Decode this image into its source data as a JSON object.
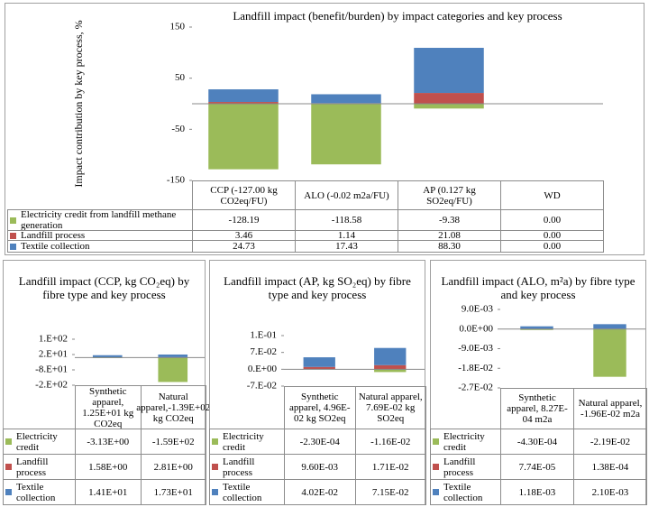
{
  "chart_data": [
    {
      "type": "bar",
      "stacked": true,
      "title": "Landfill impact (benefit/burden) by impact categories and key process",
      "ylabel": "Impact contribution by key process, %",
      "categories": [
        "CCP (-127.00 kg CO2eq/FU)",
        "ALO (-0.02 m2a/FU)",
        "AP (0.127 kg SO2eq/FU)",
        "WD"
      ],
      "ylim": [
        -150,
        150
      ],
      "yticks": [
        -150,
        -50,
        50,
        150
      ],
      "series": [
        {
          "name": "Electricity credit from landfill methane generation",
          "color": "#9bbb59",
          "values": [
            -128.19,
            -118.58,
            -9.38,
            0
          ],
          "value_labels": [
            "-128.19",
            "-118.58",
            "-9.38",
            "0.00"
          ]
        },
        {
          "name": "Landfill process",
          "color": "#c0504d",
          "values": [
            3.46,
            1.14,
            21.08,
            0
          ],
          "value_labels": [
            "3.46",
            "1.14",
            "21.08",
            "0.00"
          ]
        },
        {
          "name": "Textile collection",
          "color": "#4f81bd",
          "values": [
            24.73,
            17.43,
            88.3,
            0
          ],
          "value_labels": [
            "24.73",
            "17.43",
            "88.30",
            "0.00"
          ]
        }
      ]
    },
    {
      "type": "bar",
      "stacked": true,
      "title": "Landfill impact (CCP, kg CO₂eq) by fibre type and key process",
      "categories": [
        "Synthetic apparel, 1.25E+01 kg CO2eq",
        "Natural apparel,-1.39E+02 kg CO2eq"
      ],
      "ylim": [
        -180,
        120
      ],
      "yticks": [
        {
          "value": -180,
          "label": "-2.E+02"
        },
        {
          "value": -80,
          "label": "-8.E+01"
        },
        {
          "value": 20,
          "label": "2.E+01"
        },
        {
          "value": 120,
          "label": "1.E+02"
        }
      ],
      "series": [
        {
          "name": "Electricity credit",
          "color": "#9bbb59",
          "values": [
            -3.13,
            -159
          ],
          "value_labels": [
            "-3.13E+00",
            "-1.59E+02"
          ]
        },
        {
          "name": "Landfill process",
          "color": "#c0504d",
          "values": [
            1.58,
            2.81
          ],
          "value_labels": [
            "1.58E+00",
            "2.81E+00"
          ]
        },
        {
          "name": "Textile collection",
          "color": "#4f81bd",
          "values": [
            14.1,
            17.3
          ],
          "value_labels": [
            "1.41E+01",
            "1.73E+01"
          ]
        }
      ]
    },
    {
      "type": "bar",
      "stacked": true,
      "title": "Landfill impact (AP, kg SO₂eq) by fibre type and key process",
      "categories": [
        "Synthetic apparel, 4.96E-02 kg SO2eq",
        "Natural apparel, 7.69E-02 kg SO2eq"
      ],
      "ylim": [
        -0.07,
        0.14
      ],
      "yticks": [
        {
          "value": -0.07,
          "label": "-7.E-02"
        },
        {
          "value": 0,
          "label": "0.E+00"
        },
        {
          "value": 0.07,
          "label": "7.E-02"
        },
        {
          "value": 0.14,
          "label": "1.E-01"
        }
      ],
      "series": [
        {
          "name": "Electricity credit",
          "color": "#9bbb59",
          "values": [
            -0.00023,
            -0.0116
          ],
          "value_labels": [
            "-2.30E-04",
            "-1.16E-02"
          ]
        },
        {
          "name": "Landfill process",
          "color": "#c0504d",
          "values": [
            0.0096,
            0.0171
          ],
          "value_labels": [
            "9.60E-03",
            "1.71E-02"
          ]
        },
        {
          "name": "Textile collection",
          "color": "#4f81bd",
          "values": [
            0.0402,
            0.0715
          ],
          "value_labels": [
            "4.02E-02",
            "7.15E-02"
          ]
        }
      ]
    },
    {
      "type": "bar",
      "stacked": true,
      "title": "Landfill impact (ALO, m²a) by fibre type and key process",
      "categories": [
        "Synthetic apparel, 8.27E-04 m2a",
        "Natural apparel, -1.96E-02 m2a"
      ],
      "ylim": [
        -0.027,
        0.009
      ],
      "yticks": [
        {
          "value": -0.027,
          "label": "-2.7E-02"
        },
        {
          "value": -0.018,
          "label": "-1.8E-02"
        },
        {
          "value": -0.009,
          "label": "-9.0E-03"
        },
        {
          "value": 0,
          "label": "0.0E+00"
        },
        {
          "value": 0.009,
          "label": "9.0E-03"
        }
      ],
      "series": [
        {
          "name": "Electricity credit",
          "color": "#9bbb59",
          "values": [
            -0.00043,
            -0.0219
          ],
          "value_labels": [
            "-4.30E-04",
            "-2.19E-02"
          ]
        },
        {
          "name": "Landfill process",
          "color": "#c0504d",
          "values": [
            7.74e-05,
            0.000138
          ],
          "value_labels": [
            "7.74E-05",
            "1.38E-04"
          ]
        },
        {
          "name": "Textile collection",
          "color": "#4f81bd",
          "values": [
            0.00118,
            0.0021
          ],
          "value_labels": [
            "1.18E-03",
            "2.10E-03"
          ]
        }
      ]
    }
  ]
}
